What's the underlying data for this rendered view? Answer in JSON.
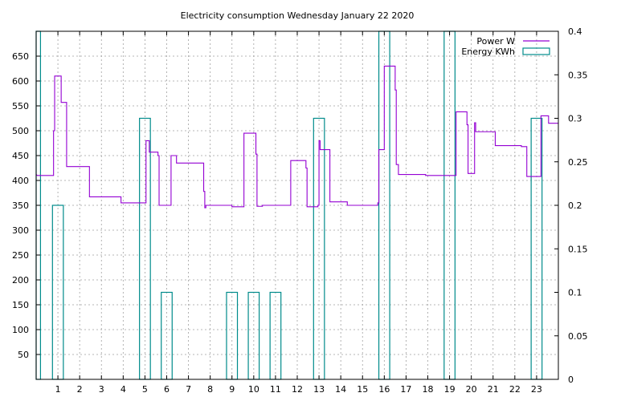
{
  "chart_data": {
    "type": "line",
    "title": "Electricity consumption Wednesday January 22 2020",
    "xlabel": "",
    "ylabel": "",
    "y2label": "",
    "xlim": [
      0,
      24
    ],
    "ylim": [
      0,
      700
    ],
    "y2lim": [
      0,
      0.4
    ],
    "grid": true,
    "legend_position": "top-right",
    "x_ticks": [
      1,
      2,
      3,
      4,
      5,
      6,
      7,
      8,
      9,
      10,
      11,
      12,
      13,
      14,
      15,
      16,
      17,
      18,
      19,
      20,
      21,
      22,
      23
    ],
    "y_ticks": [
      50,
      100,
      150,
      200,
      250,
      300,
      350,
      400,
      450,
      500,
      550,
      600,
      650
    ],
    "y2_ticks": [
      "0",
      "0.05",
      "0.1",
      "0.15",
      "0.2",
      "0.25",
      "0.3",
      "0.35",
      "0.4"
    ],
    "series": [
      {
        "name": "Power W",
        "style": "step",
        "color": "#9400d3",
        "axis": "left",
        "points": [
          [
            0.0,
            412
          ],
          [
            0.05,
            410
          ],
          [
            0.8,
            410
          ],
          [
            0.8,
            500
          ],
          [
            0.85,
            500
          ],
          [
            0.85,
            610
          ],
          [
            1.15,
            610
          ],
          [
            1.15,
            557
          ],
          [
            1.4,
            557
          ],
          [
            1.4,
            428
          ],
          [
            1.75,
            428
          ],
          [
            2.45,
            428
          ],
          [
            2.45,
            367
          ],
          [
            3.0,
            367
          ],
          [
            3.9,
            367
          ],
          [
            3.9,
            355
          ],
          [
            4.5,
            355
          ],
          [
            5.05,
            355
          ],
          [
            5.05,
            480
          ],
          [
            5.2,
            480
          ],
          [
            5.2,
            457
          ],
          [
            5.6,
            457
          ],
          [
            5.6,
            450
          ],
          [
            5.65,
            450
          ],
          [
            5.65,
            350
          ],
          [
            6.2,
            350
          ],
          [
            6.2,
            450
          ],
          [
            6.45,
            450
          ],
          [
            6.45,
            435
          ],
          [
            7.0,
            435
          ],
          [
            7.7,
            435
          ],
          [
            7.7,
            378
          ],
          [
            7.75,
            378
          ],
          [
            7.75,
            345
          ],
          [
            7.8,
            345
          ],
          [
            7.8,
            350
          ],
          [
            9.0,
            350
          ],
          [
            9.0,
            347
          ],
          [
            9.55,
            347
          ],
          [
            9.55,
            495
          ],
          [
            10.1,
            495
          ],
          [
            10.1,
            453
          ],
          [
            10.15,
            453
          ],
          [
            10.15,
            348
          ],
          [
            10.4,
            348
          ],
          [
            10.4,
            350
          ],
          [
            11.7,
            350
          ],
          [
            11.7,
            440
          ],
          [
            11.85,
            440
          ],
          [
            12.4,
            440
          ],
          [
            12.4,
            425
          ],
          [
            12.45,
            425
          ],
          [
            12.45,
            347
          ],
          [
            12.95,
            347
          ],
          [
            12.95,
            350
          ],
          [
            13.0,
            350
          ],
          [
            13.0,
            480
          ],
          [
            13.05,
            480
          ],
          [
            13.05,
            462
          ],
          [
            13.5,
            462
          ],
          [
            13.5,
            357
          ],
          [
            14.3,
            357
          ],
          [
            14.3,
            350
          ],
          [
            15.0,
            350
          ],
          [
            15.7,
            350
          ],
          [
            15.7,
            355
          ],
          [
            15.75,
            355
          ],
          [
            15.75,
            462
          ],
          [
            16.0,
            462
          ],
          [
            16.0,
            630
          ],
          [
            16.5,
            630
          ],
          [
            16.5,
            582
          ],
          [
            16.55,
            582
          ],
          [
            16.55,
            432
          ],
          [
            16.65,
            432
          ],
          [
            16.65,
            412
          ],
          [
            17.1,
            412
          ],
          [
            17.9,
            412
          ],
          [
            17.9,
            410
          ],
          [
            19.3,
            410
          ],
          [
            19.3,
            538
          ],
          [
            19.8,
            538
          ],
          [
            19.8,
            512
          ],
          [
            19.85,
            512
          ],
          [
            19.85,
            414
          ],
          [
            20.15,
            414
          ],
          [
            20.15,
            516
          ],
          [
            20.2,
            516
          ],
          [
            20.2,
            498
          ],
          [
            21.05,
            498
          ],
          [
            21.05,
            498
          ],
          [
            21.1,
            498
          ],
          [
            21.1,
            470
          ],
          [
            22.3,
            470
          ],
          [
            22.3,
            468
          ],
          [
            22.55,
            468
          ],
          [
            22.55,
            408
          ],
          [
            23.2,
            408
          ],
          [
            23.2,
            530
          ],
          [
            23.55,
            530
          ],
          [
            23.55,
            515
          ],
          [
            24.0,
            515
          ]
        ]
      },
      {
        "name": "Energy KWh",
        "style": "bars",
        "color": "#008b8b",
        "axis": "right",
        "bars": [
          [
            0.0,
            0.2,
            0.4
          ],
          [
            0.75,
            1.25,
            0.2
          ],
          [
            4.75,
            5.25,
            0.3
          ],
          [
            5.75,
            6.25,
            0.1
          ],
          [
            8.75,
            9.25,
            0.1
          ],
          [
            9.75,
            10.25,
            0.1
          ],
          [
            10.75,
            11.25,
            0.1
          ],
          [
            12.75,
            13.25,
            0.3
          ],
          [
            15.75,
            16.25,
            0.4
          ],
          [
            18.75,
            19.25,
            0.4
          ],
          [
            22.75,
            23.25,
            0.3
          ]
        ]
      }
    ]
  }
}
